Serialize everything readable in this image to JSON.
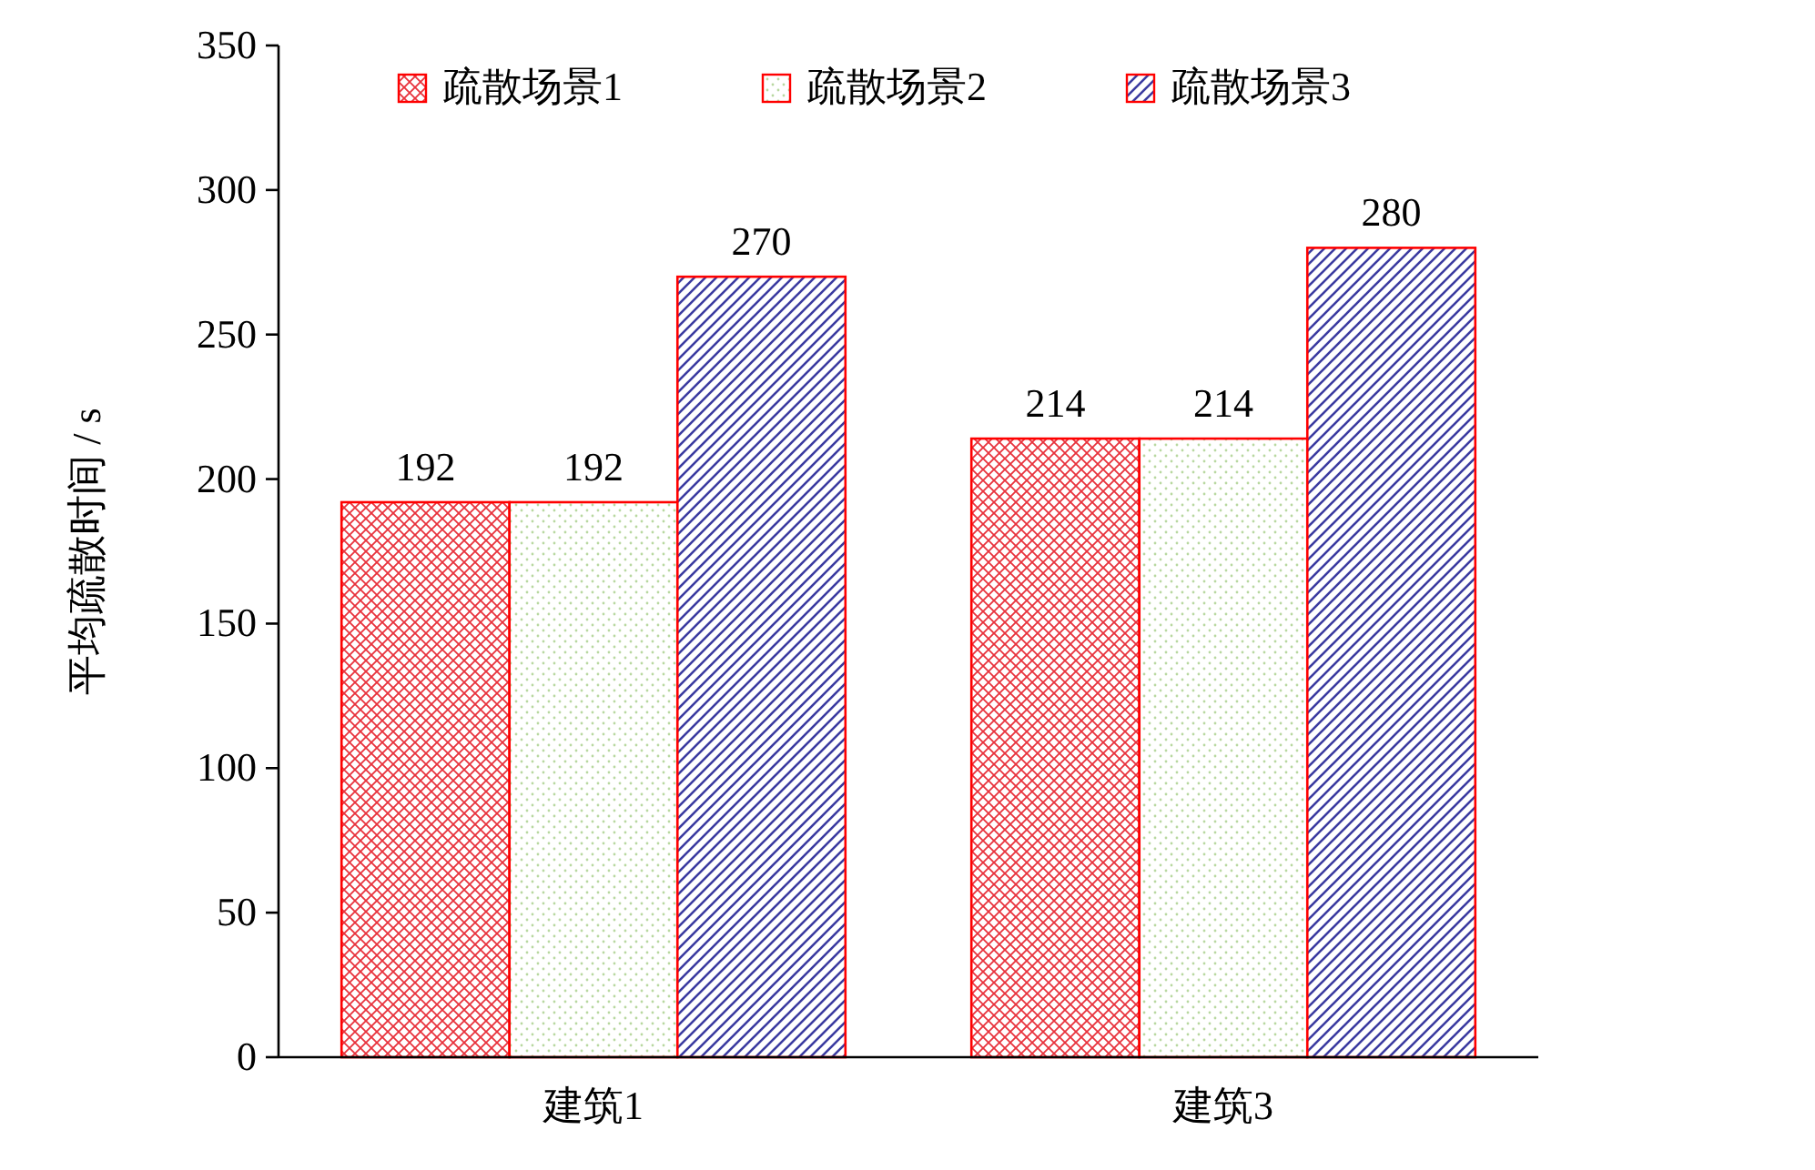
{
  "chart_data": {
    "type": "bar",
    "ylabel": "平均疏散时间 / s",
    "categories": [
      "建筑1",
      "建筑3"
    ],
    "series": [
      {
        "name": "疏散场景1",
        "color": "#ff0000",
        "values": [
          192,
          214
        ]
      },
      {
        "name": "疏散场景2",
        "color": "#ff0000",
        "values": [
          192,
          214
        ]
      },
      {
        "name": "疏散场景3",
        "color": "#ff0000",
        "values": [
          270,
          280
        ]
      }
    ],
    "ylim": [
      0,
      350
    ],
    "yticks": [
      0,
      50,
      100,
      150,
      200,
      250,
      300,
      350
    ],
    "data_labels": true,
    "legend": "top",
    "grid": false
  }
}
